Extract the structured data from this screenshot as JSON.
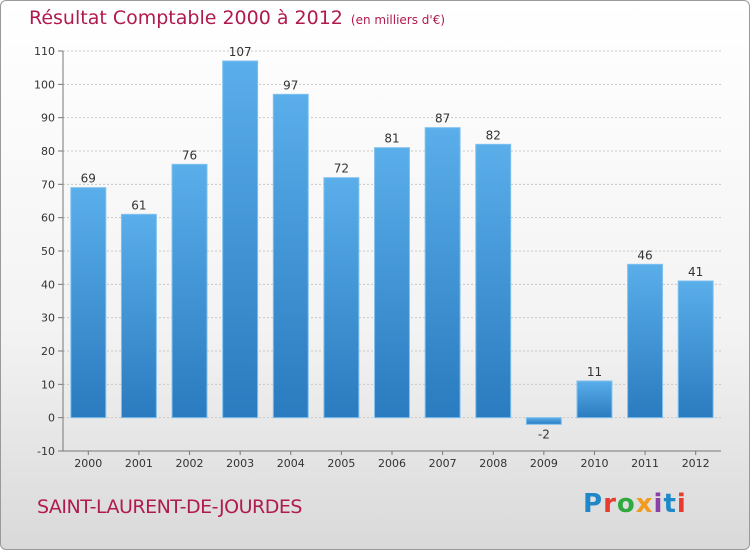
{
  "header": {
    "title": "Résultat Comptable 2000 à 2012",
    "subtitle": "(en milliers d'€)"
  },
  "footer": {
    "town": "SAINT-LAURENT-DE-JOURDES",
    "logo": "Proxiti",
    "logo_colors": [
      "#1e88c9",
      "#e63b2e",
      "#2eaa3f",
      "#f29b1f",
      "#8b3fa8",
      "#1e88c9",
      "#e63b2e"
    ]
  },
  "colors": {
    "bar_top": "#5aaeea",
    "bar_bottom": "#2a7bbf",
    "title": "#b01a4f"
  },
  "chart_data": {
    "type": "bar",
    "title": "Résultat Comptable 2000 à 2012",
    "subtitle": "(en milliers d'€)",
    "categories": [
      "2000",
      "2001",
      "2002",
      "2003",
      "2004",
      "2005",
      "2006",
      "2007",
      "2008",
      "2009",
      "2010",
      "2011",
      "2012"
    ],
    "values": [
      69,
      61,
      76,
      107,
      97,
      72,
      81,
      87,
      82,
      -2,
      11,
      46,
      41
    ],
    "ylim": [
      -10,
      110
    ],
    "yticks": [
      -10,
      0,
      10,
      20,
      30,
      40,
      50,
      60,
      70,
      80,
      90,
      100,
      110
    ],
    "grid": true
  }
}
